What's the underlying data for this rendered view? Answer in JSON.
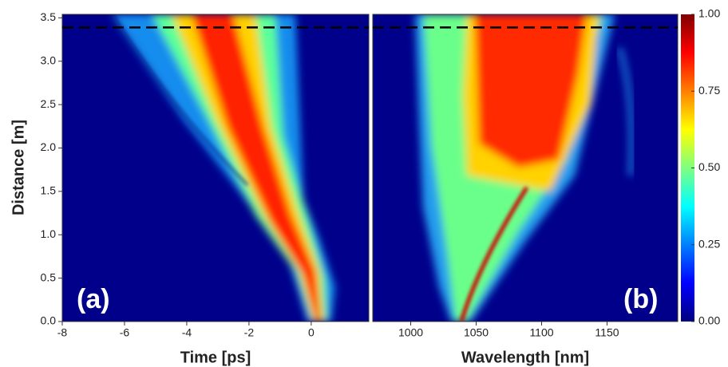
{
  "chart_data": [
    {
      "type": "heatmap",
      "xlabel": "Time [ps]",
      "ylabel": "Distance [m]",
      "annotation": "(a)",
      "xlim": [
        -8,
        1.85
      ],
      "ylim": [
        0,
        3.54
      ],
      "xticks": [
        -8,
        -6,
        -4,
        -2,
        0
      ],
      "yticks": [
        {
          "value": 0,
          "label": "0.0"
        },
        {
          "value": 0.5,
          "label": "0.5"
        },
        {
          "value": 1,
          "label": "1.0"
        },
        {
          "value": 1.5,
          "label": "1.5"
        },
        {
          "value": 2,
          "label": "2.0"
        },
        {
          "value": 2.5,
          "label": "2.5"
        },
        {
          "value": 3,
          "label": "3.0"
        },
        {
          "value": 3.5,
          "label": "3.5"
        }
      ],
      "hline": 3.39
    },
    {
      "type": "heatmap",
      "xlabel": "Wavelength [nm]",
      "annotation": "(b)",
      "xlim": [
        971,
        1204
      ],
      "ylim": [
        0,
        3.54
      ],
      "xticks": [
        1000,
        1050,
        1100,
        1150
      ],
      "hline": 3.39,
      "colorbar": {
        "clim": [
          0,
          1
        ],
        "ticks": [
          {
            "value": 0,
            "label": "0.00"
          },
          {
            "value": 0.25,
            "label": "0.25"
          },
          {
            "value": 0.5,
            "label": "0.50"
          },
          {
            "value": 0.75,
            "label": "0.75"
          },
          {
            "value": 1,
            "label": "1.00"
          }
        ]
      }
    }
  ]
}
